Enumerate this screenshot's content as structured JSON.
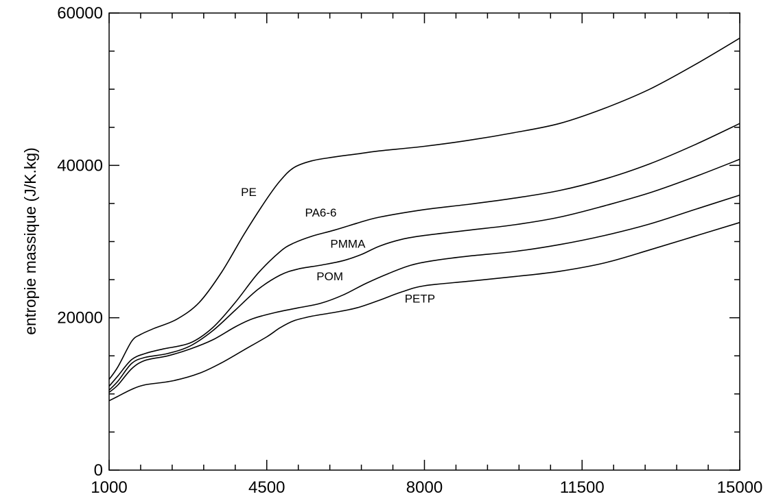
{
  "chart_data": {
    "type": "line",
    "title": "",
    "xlabel": "",
    "ylabel": "entropie massique (J/K.kg)",
    "xlim": [
      1000,
      15000
    ],
    "ylim": [
      0,
      60000
    ],
    "x_ticks": [
      1000,
      4500,
      8000,
      11500,
      15000
    ],
    "x_tick_labels": [
      "1000",
      "4500",
      "8000",
      "11500",
      "15000"
    ],
    "x_minor_step": 700,
    "y_ticks": [
      0,
      20000,
      40000,
      60000
    ],
    "y_tick_labels": [
      "0",
      "20000",
      "40000",
      "60000"
    ],
    "y_minor_step": 5000,
    "grid": false,
    "legend": "inline labels",
    "line_color": "#000000",
    "series": [
      {
        "name": "PE",
        "label_at": [
          4100,
          36000
        ],
        "points": [
          [
            1000,
            11900
          ],
          [
            1200,
            13600
          ],
          [
            1500,
            16900
          ],
          [
            1700,
            17800
          ],
          [
            2000,
            18600
          ],
          [
            2500,
            19800
          ],
          [
            3000,
            22000
          ],
          [
            3500,
            26000
          ],
          [
            4000,
            31000
          ],
          [
            4500,
            35600
          ],
          [
            4800,
            38000
          ],
          [
            5100,
            39700
          ],
          [
            5500,
            40600
          ],
          [
            6000,
            41100
          ],
          [
            6500,
            41500
          ],
          [
            7000,
            41900
          ],
          [
            8000,
            42500
          ],
          [
            9000,
            43300
          ],
          [
            10000,
            44300
          ],
          [
            11000,
            45500
          ],
          [
            12000,
            47500
          ],
          [
            13000,
            50000
          ],
          [
            14000,
            53200
          ],
          [
            15000,
            56700
          ]
        ]
      },
      {
        "name": "PA6-6",
        "label_at": [
          5700,
          33300
        ],
        "points": [
          [
            1000,
            11000
          ],
          [
            1200,
            12400
          ],
          [
            1500,
            14500
          ],
          [
            1800,
            15300
          ],
          [
            2200,
            15900
          ],
          [
            2800,
            16700
          ],
          [
            3300,
            18700
          ],
          [
            3800,
            22000
          ],
          [
            4300,
            25800
          ],
          [
            4800,
            28700
          ],
          [
            5100,
            29800
          ],
          [
            5500,
            30700
          ],
          [
            6000,
            31500
          ],
          [
            6500,
            32400
          ],
          [
            7000,
            33200
          ],
          [
            8000,
            34200
          ],
          [
            9000,
            34900
          ],
          [
            10000,
            35700
          ],
          [
            11000,
            36700
          ],
          [
            12000,
            38200
          ],
          [
            13000,
            40200
          ],
          [
            14000,
            42700
          ],
          [
            15000,
            45500
          ]
        ]
      },
      {
        "name": "PMMA",
        "label_at": [
          6300,
          29200
        ],
        "points": [
          [
            1000,
            10500
          ],
          [
            1200,
            11700
          ],
          [
            1500,
            14000
          ],
          [
            1800,
            14800
          ],
          [
            2300,
            15300
          ],
          [
            2800,
            16300
          ],
          [
            3300,
            18300
          ],
          [
            3800,
            21000
          ],
          [
            4300,
            23700
          ],
          [
            4800,
            25600
          ],
          [
            5200,
            26400
          ],
          [
            5700,
            26900
          ],
          [
            6200,
            27500
          ],
          [
            6600,
            28300
          ],
          [
            7000,
            29400
          ],
          [
            7500,
            30300
          ],
          [
            8000,
            30800
          ],
          [
            9000,
            31500
          ],
          [
            10000,
            32200
          ],
          [
            11000,
            33200
          ],
          [
            12000,
            34700
          ],
          [
            13000,
            36400
          ],
          [
            14000,
            38500
          ],
          [
            15000,
            40800
          ]
        ]
      },
      {
        "name": "POM",
        "label_at": [
          5900,
          24900
        ],
        "points": [
          [
            1000,
            10200
          ],
          [
            1200,
            11200
          ],
          [
            1500,
            13300
          ],
          [
            1800,
            14400
          ],
          [
            2300,
            15000
          ],
          [
            2800,
            15900
          ],
          [
            3300,
            17100
          ],
          [
            3800,
            18800
          ],
          [
            4200,
            19900
          ],
          [
            4700,
            20700
          ],
          [
            5200,
            21300
          ],
          [
            5700,
            21900
          ],
          [
            6200,
            23000
          ],
          [
            6700,
            24500
          ],
          [
            7200,
            25800
          ],
          [
            7700,
            26900
          ],
          [
            8200,
            27500
          ],
          [
            9000,
            28100
          ],
          [
            10000,
            28700
          ],
          [
            11000,
            29600
          ],
          [
            12000,
            30800
          ],
          [
            13000,
            32300
          ],
          [
            14000,
            34200
          ],
          [
            15000,
            36100
          ]
        ]
      },
      {
        "name": "PETP",
        "label_at": [
          7900,
          22000
        ],
        "points": [
          [
            1000,
            9100
          ],
          [
            1200,
            9700
          ],
          [
            1500,
            10600
          ],
          [
            1800,
            11200
          ],
          [
            2400,
            11700
          ],
          [
            3000,
            12700
          ],
          [
            3500,
            14100
          ],
          [
            4000,
            15800
          ],
          [
            4500,
            17500
          ],
          [
            4800,
            18700
          ],
          [
            5100,
            19600
          ],
          [
            5500,
            20200
          ],
          [
            6000,
            20700
          ],
          [
            6500,
            21300
          ],
          [
            7000,
            22300
          ],
          [
            7500,
            23400
          ],
          [
            8000,
            24200
          ],
          [
            9000,
            24800
          ],
          [
            10000,
            25400
          ],
          [
            11000,
            26100
          ],
          [
            12000,
            27200
          ],
          [
            13000,
            28900
          ],
          [
            14000,
            30700
          ],
          [
            15000,
            32500
          ]
        ]
      }
    ]
  }
}
